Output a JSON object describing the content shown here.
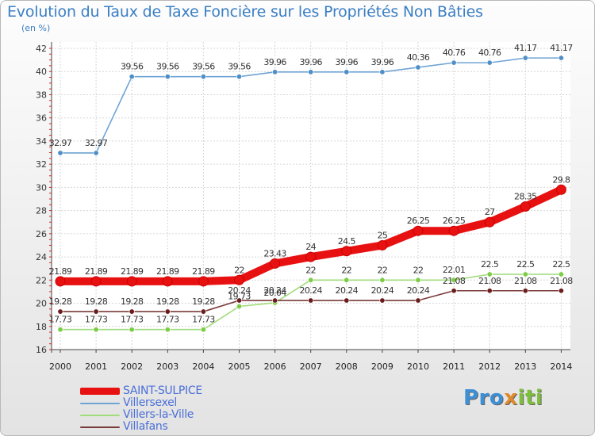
{
  "title": "Evolution du Taux de Taxe Foncière sur les Propriétés Non Bâties",
  "unit": "(en %)",
  "logo": {
    "parts": [
      "Pro",
      "x",
      "iti"
    ],
    "colors": [
      "#3d8fd6",
      "#e08a2c",
      "#7cbf3a"
    ]
  },
  "chart_data": {
    "type": "line",
    "title": "Evolution du Taux de Taxe Foncière sur les Propriétés Non Bâties",
    "ylabel": "(en %)",
    "xlabel": "",
    "ylim": [
      16,
      42
    ],
    "yticks": [
      16,
      18,
      20,
      22,
      24,
      26,
      28,
      30,
      32,
      34,
      36,
      38,
      40,
      42
    ],
    "categories": [
      "2000",
      "2001",
      "2002",
      "2003",
      "2004",
      "2005",
      "2006",
      "2007",
      "2008",
      "2009",
      "2010",
      "2011",
      "2012",
      "2013",
      "2014"
    ],
    "series": [
      {
        "name": "SAINT-SULPICE",
        "color": "#e81111",
        "marker": "#e81111",
        "values": [
          21.89,
          21.89,
          21.89,
          21.89,
          21.89,
          22,
          23.43,
          24,
          24.5,
          25,
          26.25,
          26.25,
          27,
          28.35,
          29.8
        ],
        "labels": [
          "21.89",
          "21.89",
          "21.89",
          "21.89",
          "21.89",
          "22",
          "23.43",
          "24",
          "24.5",
          "25",
          "26.25",
          "26.25",
          "27",
          "28.35",
          "29.8"
        ]
      },
      {
        "name": "Villersexel",
        "color": "#6fa4d4",
        "marker": "#4f8fc8",
        "values": [
          32.97,
          32.97,
          39.56,
          39.56,
          39.56,
          39.56,
          39.96,
          39.96,
          39.96,
          39.96,
          40.36,
          40.76,
          40.76,
          41.17,
          41.17
        ],
        "labels": [
          "32.97",
          "32.97",
          "39.56",
          "39.56",
          "39.56",
          "39.56",
          "39.96",
          "39.96",
          "39.96",
          "39.96",
          "40.36",
          "40.76",
          "40.76",
          "41.17",
          "41.17"
        ]
      },
      {
        "name": "Villers-la-Ville",
        "color": "#9fdc7a",
        "marker": "#7ccc45",
        "values": [
          17.73,
          17.73,
          17.73,
          17.73,
          17.73,
          19.73,
          20.04,
          22,
          22,
          22,
          22,
          22.01,
          22.5,
          22.5,
          22.5
        ],
        "labels": [
          "17.73",
          "17.73",
          "17.73",
          "17.73",
          "17.73",
          "19.73",
          "20.04",
          "22",
          "22",
          "22",
          "22",
          "22.01",
          "22.5",
          "22.5",
          "22.5"
        ]
      },
      {
        "name": "Villafans",
        "color": "#7a3a3a",
        "marker": "#6b1c1c",
        "values": [
          19.28,
          19.28,
          19.28,
          19.28,
          19.28,
          20.24,
          20.24,
          20.24,
          20.24,
          20.24,
          20.24,
          21.08,
          21.08,
          21.08,
          21.08
        ],
        "labels": [
          "19.28",
          "19.28",
          "19.28",
          "19.28",
          "19.28",
          "20.24",
          "20.24",
          "20.24",
          "20.24",
          "20.24",
          "20.24",
          "21.08",
          "21.08",
          "21.08",
          "21.08"
        ]
      }
    ]
  }
}
